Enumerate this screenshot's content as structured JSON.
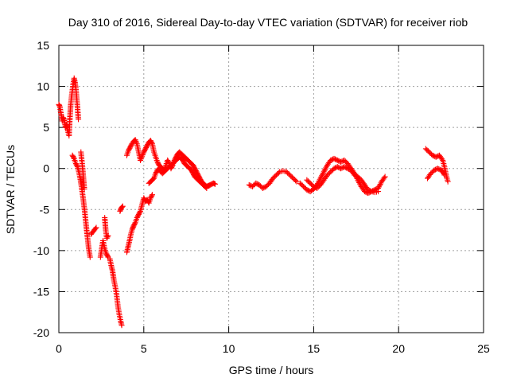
{
  "chart_data": {
    "type": "scatter",
    "title": "Day 310 of 2016, Sidereal Day-to-day VTEC variation (SDTVAR) for receiver riob",
    "xlabel": "GPS time / hours",
    "ylabel": "SDTVAR / TECUs",
    "xlim": [
      0,
      25
    ],
    "ylim": [
      -20,
      15
    ],
    "xticks": [
      "0",
      "5",
      "10",
      "15",
      "20",
      "25"
    ],
    "yticks": [
      "-20",
      "-15",
      "-10",
      "-5",
      "0",
      "5",
      "10",
      "15"
    ],
    "grid": true,
    "marker": "+",
    "color": "#ff0000",
    "series": [
      {
        "name": "SDTVAR",
        "segments": [
          [
            [
              0.0,
              7.8
            ],
            [
              0.05,
              7.6
            ],
            [
              0.1,
              7.0
            ],
            [
              0.15,
              6.4
            ],
            [
              0.2,
              5.8
            ],
            [
              0.25,
              6.2
            ],
            [
              0.3,
              6.0
            ],
            [
              0.35,
              5.5
            ],
            [
              0.4,
              5.0
            ],
            [
              0.45,
              5.3
            ],
            [
              0.5,
              4.8
            ],
            [
              0.55,
              4.4
            ],
            [
              0.6,
              4.0
            ],
            [
              0.62,
              5.0
            ],
            [
              0.66,
              6.5
            ],
            [
              0.7,
              7.8
            ],
            [
              0.75,
              8.8
            ],
            [
              0.8,
              9.6
            ],
            [
              0.85,
              10.4
            ],
            [
              0.9,
              11.0
            ],
            [
              0.95,
              10.5
            ],
            [
              1.0,
              9.8
            ],
            [
              1.05,
              8.6
            ],
            [
              1.1,
              7.4
            ],
            [
              1.15,
              6.0
            ]
          ],
          [
            [
              0.8,
              1.6
            ],
            [
              0.9,
              1.2
            ],
            [
              1.0,
              0.6
            ],
            [
              1.1,
              0.2
            ],
            [
              1.2,
              -0.6
            ],
            [
              1.28,
              -1.5
            ],
            [
              1.36,
              -2.6
            ],
            [
              1.44,
              -3.8
            ],
            [
              1.52,
              -5.2
            ],
            [
              1.6,
              -6.8
            ],
            [
              1.68,
              -8.3
            ],
            [
              1.76,
              -9.8
            ],
            [
              1.84,
              -10.8
            ]
          ],
          [
            [
              1.3,
              2.0
            ],
            [
              1.35,
              1.0
            ],
            [
              1.4,
              0.0
            ],
            [
              1.45,
              -1.2
            ],
            [
              1.5,
              -2.5
            ]
          ],
          [
            [
              1.9,
              -8.0
            ],
            [
              2.05,
              -7.6
            ],
            [
              2.2,
              -7.2
            ]
          ],
          [
            [
              2.45,
              -10.8
            ],
            [
              2.52,
              -9.8
            ],
            [
              2.6,
              -8.8
            ],
            [
              2.7,
              -9.8
            ],
            [
              2.8,
              -10.4
            ],
            [
              2.9,
              -10.8
            ]
          ],
          [
            [
              2.7,
              -6.0
            ],
            [
              2.76,
              -7.5
            ],
            [
              2.82,
              -8.5
            ],
            [
              2.9,
              -8.2
            ]
          ],
          [
            [
              3.0,
              -11.0
            ],
            [
              3.08,
              -11.8
            ],
            [
              3.16,
              -12.5
            ],
            [
              3.24,
              -13.6
            ],
            [
              3.32,
              -14.4
            ],
            [
              3.4,
              -15.4
            ],
            [
              3.48,
              -16.8
            ],
            [
              3.56,
              -17.8
            ],
            [
              3.64,
              -18.6
            ],
            [
              3.7,
              -19.1
            ]
          ],
          [
            [
              3.6,
              -5.2
            ],
            [
              3.68,
              -4.8
            ],
            [
              3.76,
              -4.6
            ]
          ],
          [
            [
              4.0,
              -10.2
            ],
            [
              4.08,
              -9.5
            ],
            [
              4.16,
              -8.8
            ],
            [
              4.24,
              -8.0
            ],
            [
              4.32,
              -7.4
            ],
            [
              4.4,
              -7.0
            ],
            [
              4.5,
              -6.6
            ],
            [
              4.6,
              -6.0
            ],
            [
              4.7,
              -5.6
            ],
            [
              4.8,
              -5.2
            ],
            [
              4.9,
              -4.4
            ],
            [
              5.0,
              -3.6
            ],
            [
              5.1,
              -4.0
            ],
            [
              5.2,
              -3.8
            ],
            [
              5.3,
              -4.2
            ],
            [
              5.4,
              -3.6
            ],
            [
              5.5,
              -3.2
            ]
          ],
          [
            [
              4.0,
              1.6
            ],
            [
              4.1,
              2.2
            ],
            [
              4.2,
              2.6
            ],
            [
              4.3,
              3.0
            ],
            [
              4.4,
              3.3
            ],
            [
              4.5,
              3.5
            ],
            [
              4.6,
              3.0
            ],
            [
              4.7,
              2.0
            ],
            [
              4.8,
              1.0
            ],
            [
              4.9,
              1.5
            ],
            [
              5.0,
              2.0
            ],
            [
              5.1,
              2.4
            ],
            [
              5.2,
              2.8
            ],
            [
              5.3,
              3.2
            ],
            [
              5.4,
              3.4
            ],
            [
              5.5,
              3.0
            ],
            [
              5.6,
              2.0
            ],
            [
              5.7,
              1.4
            ],
            [
              5.8,
              0.8
            ],
            [
              5.9,
              0.4
            ],
            [
              6.0,
              0.2
            ],
            [
              6.1,
              0.0
            ],
            [
              6.2,
              -0.2
            ],
            [
              6.3,
              0.4
            ],
            [
              6.4,
              1.0
            ],
            [
              6.5,
              0.6
            ],
            [
              6.6,
              0.0
            ],
            [
              6.7,
              0.4
            ],
            [
              6.8,
              1.0
            ],
            [
              6.9,
              1.4
            ],
            [
              7.0,
              1.8
            ],
            [
              7.1,
              2.0
            ],
            [
              7.2,
              1.8
            ],
            [
              7.3,
              1.6
            ],
            [
              7.4,
              1.4
            ],
            [
              7.5,
              1.2
            ],
            [
              7.6,
              1.0
            ],
            [
              7.7,
              0.8
            ],
            [
              7.8,
              0.6
            ],
            [
              7.9,
              0.4
            ],
            [
              8.0,
              0.0
            ],
            [
              8.1,
              -0.4
            ],
            [
              8.2,
              -0.8
            ],
            [
              8.3,
              -1.2
            ],
            [
              8.4,
              -1.6
            ],
            [
              8.5,
              -1.8
            ],
            [
              8.6,
              -2.0
            ],
            [
              8.7,
              -2.2
            ],
            [
              8.8,
              -2.1
            ],
            [
              8.9,
              -2.0
            ],
            [
              9.0,
              -1.9
            ],
            [
              9.1,
              -1.8
            ],
            [
              9.2,
              -1.9
            ]
          ],
          [
            [
              5.3,
              -1.8
            ],
            [
              5.4,
              -1.6
            ],
            [
              5.5,
              -1.4
            ],
            [
              5.6,
              -1.2
            ],
            [
              5.7,
              -0.6
            ],
            [
              5.8,
              -0.2
            ],
            [
              5.9,
              0.0
            ],
            [
              6.0,
              -0.4
            ],
            [
              6.1,
              -0.6
            ],
            [
              6.2,
              -0.4
            ],
            [
              6.3,
              -0.2
            ],
            [
              6.4,
              0.0
            ],
            [
              6.5,
              0.2
            ],
            [
              6.6,
              0.4
            ],
            [
              6.7,
              0.6
            ],
            [
              6.8,
              0.8
            ],
            [
              6.9,
              1.0
            ],
            [
              7.0,
              1.2
            ],
            [
              7.1,
              1.4
            ],
            [
              7.2,
              1.2
            ],
            [
              7.3,
              1.0
            ],
            [
              7.4,
              0.6
            ],
            [
              7.5,
              0.4
            ],
            [
              7.6,
              0.2
            ],
            [
              7.7,
              0.0
            ],
            [
              7.8,
              -0.2
            ],
            [
              7.9,
              -0.6
            ],
            [
              8.0,
              -1.0
            ],
            [
              8.1,
              -1.2
            ],
            [
              8.2,
              -1.4
            ],
            [
              8.3,
              -1.6
            ],
            [
              8.4,
              -1.8
            ],
            [
              8.5,
              -2.0
            ],
            [
              8.6,
              -2.2
            ],
            [
              8.7,
              -2.4
            ]
          ],
          [
            [
              11.2,
              -2.0
            ],
            [
              11.4,
              -2.2
            ],
            [
              11.6,
              -1.8
            ],
            [
              11.8,
              -2.0
            ],
            [
              12.0,
              -2.4
            ],
            [
              12.2,
              -2.2
            ],
            [
              12.4,
              -1.8
            ],
            [
              12.6,
              -1.2
            ],
            [
              12.8,
              -0.8
            ],
            [
              13.0,
              -0.4
            ],
            [
              13.2,
              -0.3
            ],
            [
              13.4,
              -0.4
            ],
            [
              13.6,
              -0.8
            ],
            [
              13.8,
              -1.2
            ],
            [
              14.0,
              -1.6
            ]
          ],
          [
            [
              14.2,
              -1.8
            ],
            [
              14.4,
              -2.2
            ],
            [
              14.6,
              -2.6
            ],
            [
              14.8,
              -2.8
            ],
            [
              15.0,
              -2.5
            ],
            [
              15.2,
              -2.0
            ],
            [
              15.4,
              -1.2
            ],
            [
              15.6,
              -0.4
            ],
            [
              15.8,
              0.4
            ],
            [
              16.0,
              1.0
            ],
            [
              16.2,
              1.2
            ],
            [
              16.4,
              1.0
            ],
            [
              16.6,
              0.8
            ],
            [
              16.8,
              1.0
            ],
            [
              17.0,
              0.6
            ],
            [
              17.2,
              0.0
            ],
            [
              17.4,
              -0.6
            ],
            [
              17.6,
              -1.4
            ],
            [
              17.8,
              -2.2
            ],
            [
              18.0,
              -2.8
            ],
            [
              18.2,
              -3.0
            ],
            [
              18.4,
              -2.8
            ],
            [
              18.6,
              -2.6
            ],
            [
              18.8,
              -2.4
            ],
            [
              19.0,
              -1.6
            ],
            [
              19.2,
              -1.0
            ]
          ],
          [
            [
              14.6,
              -1.4
            ],
            [
              14.8,
              -1.8
            ],
            [
              15.0,
              -2.2
            ],
            [
              15.2,
              -2.4
            ],
            [
              15.4,
              -2.0
            ],
            [
              15.6,
              -1.4
            ],
            [
              15.8,
              -0.8
            ],
            [
              16.0,
              -0.4
            ],
            [
              16.2,
              0.0
            ],
            [
              16.4,
              0.2
            ],
            [
              16.6,
              0.0
            ],
            [
              16.8,
              0.2
            ],
            [
              17.0,
              0.0
            ],
            [
              17.2,
              -0.2
            ],
            [
              17.4,
              -0.8
            ],
            [
              17.6,
              -1.0
            ],
            [
              17.8,
              -1.4
            ],
            [
              18.0,
              -2.0
            ],
            [
              18.2,
              -2.6
            ],
            [
              18.4,
              -2.8
            ],
            [
              18.6,
              -2.9
            ],
            [
              18.8,
              -2.8
            ]
          ],
          [
            [
              21.6,
              2.4
            ],
            [
              21.8,
              2.0
            ],
            [
              22.0,
              1.6
            ],
            [
              22.2,
              1.4
            ],
            [
              22.4,
              1.6
            ],
            [
              22.6,
              1.0
            ],
            [
              22.7,
              0.2
            ],
            [
              22.8,
              -0.8
            ],
            [
              22.9,
              -1.6
            ]
          ],
          [
            [
              21.7,
              -1.2
            ],
            [
              21.9,
              -0.6
            ],
            [
              22.1,
              -0.2
            ],
            [
              22.3,
              0.0
            ],
            [
              22.5,
              -0.2
            ],
            [
              22.6,
              -0.4
            ],
            [
              22.7,
              -0.8
            ]
          ]
        ]
      }
    ]
  }
}
